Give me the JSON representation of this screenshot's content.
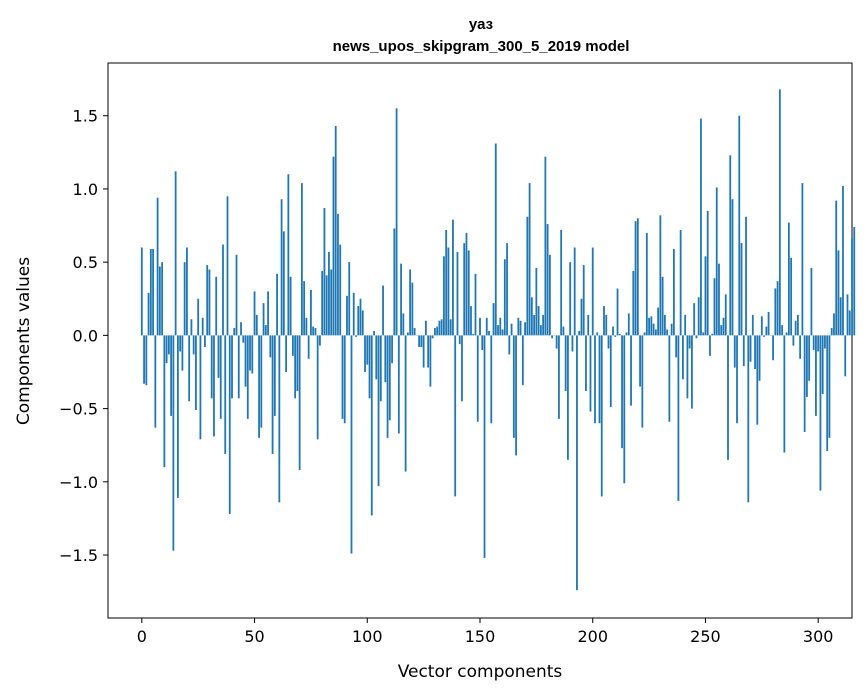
{
  "chart_data": {
    "type": "bar",
    "title": "уаз",
    "subtitle": "news_upos_skipgram_300_5_2019 model",
    "xlabel": "Vector components",
    "ylabel": "Components values",
    "xlim": [
      -15,
      315
    ],
    "ylim": [
      -1.93,
      1.86
    ],
    "xticks": [
      0,
      50,
      100,
      150,
      200,
      250,
      300
    ],
    "xtick_labels": [
      "0",
      "50",
      "100",
      "150",
      "200",
      "250",
      "300"
    ],
    "yticks": [
      -1.5,
      -1.0,
      -0.5,
      0.0,
      0.5,
      1.0,
      1.5
    ],
    "ytick_labels": [
      "−1.5",
      "−1.0",
      "−0.5",
      "0.0",
      "0.5",
      "1.0",
      "1.5"
    ],
    "bar_color": "#1f77b4",
    "grid": false,
    "values": [
      0.6,
      -0.33,
      -0.34,
      0.29,
      0.59,
      0.59,
      -0.63,
      0.94,
      0.47,
      0.5,
      -0.9,
      -0.19,
      -0.13,
      -0.55,
      -1.47,
      1.12,
      -1.11,
      -0.11,
      -0.24,
      0.5,
      0.6,
      -0.45,
      0.11,
      -0.13,
      -0.51,
      0.25,
      -0.71,
      0.12,
      -0.08,
      0.48,
      0.45,
      -0.43,
      -0.69,
      0.4,
      -0.29,
      -0.57,
      0.62,
      -0.81,
      0.95,
      -1.22,
      -0.43,
      0.05,
      0.55,
      -0.43,
      0.09,
      -0.05,
      -0.35,
      -0.57,
      -0.24,
      -0.26,
      0.3,
      0.14,
      -0.7,
      -0.63,
      0.22,
      0.07,
      0.3,
      -0.15,
      -0.81,
      -0.55,
      0.42,
      -1.14,
      0.93,
      0.71,
      -0.25,
      1.1,
      0.4,
      -0.14,
      -0.43,
      -0.38,
      -0.92,
      1.04,
      0.37,
      0.12,
      -0.16,
      0.31,
      0.06,
      0.05,
      -0.71,
      -0.07,
      0.44,
      0.87,
      0.41,
      0.57,
      0.45,
      1.22,
      1.43,
      0.83,
      0.62,
      -0.57,
      -0.6,
      0.27,
      0.5,
      -1.49,
      0.29,
      -0.01,
      0.2,
      0.25,
      0.17,
      -0.25,
      -0.2,
      -0.43,
      -1.23,
      0.03,
      -0.3,
      -1.03,
      -0.45,
      0.34,
      -0.32,
      -0.7,
      -0.58,
      -0.19,
      0.73,
      1.55,
      -0.67,
      0.49,
      0.15,
      -0.93,
      0.02,
      0.45,
      0.36,
      0.05,
      0.0,
      -0.08,
      -0.08,
      -0.22,
      0.1,
      -0.22,
      -0.35,
      -0.02,
      0.05,
      0.06,
      0.1,
      0.11,
      0.54,
      0.72,
      0.6,
      0.11,
      0.79,
      -1.1,
      0.57,
      -0.06,
      -0.45,
      0.63,
      0.7,
      0.58,
      0.2,
      0.01,
      0.42,
      -0.59,
      0.12,
      -0.1,
      -1.52,
      0.12,
      0.03,
      -0.6,
      0.22,
      1.31,
      0.07,
      0.12,
      0.04,
      0.52,
      0.63,
      -0.13,
      0.08,
      -0.7,
      -0.82,
      0.12,
      0.1,
      -0.34,
      0.09,
      0.81,
      1.04,
      0.26,
      0.14,
      0.46,
      0.2,
      0.07,
      0.14,
      1.22,
      0.76,
      0.55,
      -0.02,
      0.0,
      -0.09,
      -0.57,
      0.72,
      0.06,
      -0.38,
      -0.85,
      0.5,
      -0.11,
      0.6,
      -1.74,
      0.03,
      0.25,
      0.48,
      -0.38,
      0.14,
      -0.52,
      0.6,
      -0.6,
      0.02,
      -0.6,
      -1.1,
      0.2,
      0.14,
      -0.09,
      -0.49,
      0.06,
      -0.01,
      0.32,
      0.01,
      -0.77,
      -1.01,
      0.02,
      0.15,
      -0.48,
      0.44,
      0.78,
      0.8,
      -0.35,
      -0.63,
      0.02,
      0.7,
      0.12,
      0.13,
      0.08,
      0.04,
      0.19,
      0.82,
      0.4,
      0.14,
      0.04,
      -0.59,
      0.08,
      0.59,
      -0.15,
      -1.13,
      0.72,
      -0.3,
      0.14,
      -0.43,
      -0.09,
      -0.5,
      0.22,
      -0.02,
      0.26,
      1.48,
      0.02,
      0.54,
      0.85,
      -0.14,
      0.01,
      0.39,
      1.01,
      0.49,
      0.07,
      0.12,
      0.28,
      -0.85,
      1.23,
      0.93,
      -0.22,
      -0.6,
      1.5,
      0.63,
      -0.21,
      0.81,
      -1.14,
      -0.18,
      0.14,
      -0.23,
      -0.61,
      -0.31,
      0.13,
      -0.01,
      0.06,
      0.16,
      0.0,
      -0.17,
      0.32,
      0.37,
      1.68,
      0.07,
      -0.8,
      0.02,
      0.77,
      0.53,
      -0.07,
      0.1,
      0.14,
      -0.16,
      1.04,
      -0.66,
      -0.42,
      -0.31,
      0.46,
      -0.1,
      -0.55,
      -0.11,
      -1.06,
      -0.4,
      -0.09,
      -0.79,
      -0.7,
      0.05,
      0.15,
      0.92,
      0.58,
      0.26,
      1.02,
      -0.28,
      0.28,
      0.17,
      0.66,
      0.74
    ]
  }
}
